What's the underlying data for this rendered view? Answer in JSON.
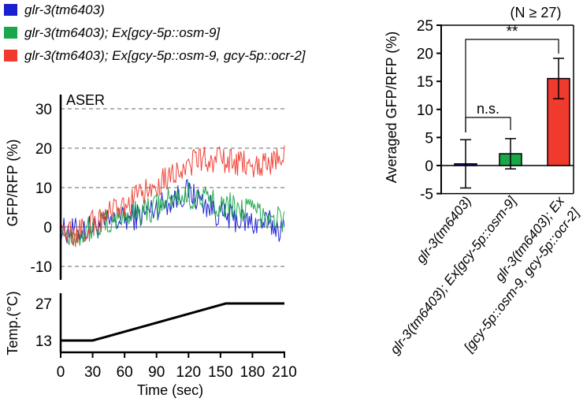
{
  "legend": [
    {
      "label": "glr-3(tm6403)",
      "color": "#1a1fd0"
    },
    {
      "label": "glr-3(tm6403); Ex[gcy-5p::osm-9]",
      "color": "#1aa64a"
    },
    {
      "label": "glr-3(tm6403); Ex[gcy-5p::osm-9, gcy-5p::ocr-2]",
      "color": "#f03a2e"
    }
  ],
  "chart_data": [
    {
      "type": "line",
      "title": "ASER",
      "ylabel": "GFP/RFP (%)",
      "xlabel": "",
      "ylim": [
        -12,
        35
      ],
      "yticks": [
        "30",
        "20",
        "10",
        "0",
        "-10"
      ],
      "grid": "dashed horizontal at y = 30, 20, 10, -10",
      "series": [
        {
          "name": "glr-3(tm6403)",
          "color": "#1a1fd0",
          "x": [
            0,
            15,
            30,
            45,
            60,
            75,
            90,
            105,
            120,
            135,
            150,
            165,
            180,
            195,
            210
          ],
          "values": [
            -1,
            -1,
            0,
            1,
            2,
            3,
            5,
            7,
            9,
            6,
            3,
            2,
            1,
            1,
            -1
          ]
        },
        {
          "name": "glr-3(tm6403); Ex[gcy-5p::osm-9]",
          "color": "#1aa64a",
          "x": [
            0,
            15,
            30,
            45,
            60,
            75,
            90,
            105,
            120,
            135,
            150,
            165,
            180,
            195,
            210
          ],
          "values": [
            -1,
            -2,
            0,
            1,
            3,
            4,
            5,
            7,
            8,
            7,
            6,
            5,
            4,
            3,
            2
          ]
        },
        {
          "name": "glr-3(tm6403); Ex[gcy-5p::osm-9, gcy-5p::ocr-2]",
          "color": "#f03a2e",
          "x": [
            0,
            15,
            30,
            45,
            60,
            75,
            90,
            105,
            120,
            135,
            150,
            165,
            180,
            195,
            210
          ],
          "values": [
            -1,
            -2,
            1,
            3,
            5,
            8,
            11,
            14,
            16,
            17,
            17,
            16,
            16,
            16,
            18
          ]
        }
      ]
    },
    {
      "type": "line",
      "title": "",
      "ylabel": "Temp.(°C)",
      "xlabel": "Time (sec)",
      "xlim": [
        0,
        210
      ],
      "xticks": [
        "0",
        "30",
        "60",
        "90",
        "120",
        "150",
        "180",
        "210"
      ],
      "yticks": [
        "27",
        "13"
      ],
      "series": [
        {
          "x": [
            0,
            30,
            155,
            210
          ],
          "values": [
            13,
            13,
            27,
            27
          ],
          "color": "#000000"
        }
      ]
    },
    {
      "type": "bar",
      "note": "(N ≥ 27)",
      "ylabel": "Averaged GFP/RFP (%)",
      "ylim": [
        -5,
        25
      ],
      "yticks": [
        "25",
        "20",
        "15",
        "10",
        "5",
        "0",
        "-5"
      ],
      "categories": [
        "glr-3(tm6403)",
        "glr-3(tm6403); Ex[gcy-5p::osm-9]",
        "glr-3(tm6403); Ex [gcy-5p::osm-9, gcy-5p::ocr-2]"
      ],
      "category_lines": [
        [
          "glr-3(tm6403)"
        ],
        [
          "glr-3(tm6403); Ex[gcy-5p::osm-9]"
        ],
        [
          "glr-3(tm6403); Ex",
          "[gcy-5p::osm-9, gcy-5p::ocr-2]"
        ]
      ],
      "values": [
        0.3,
        2.1,
        15.5
      ],
      "errors": [
        4.3,
        2.7,
        3.6
      ],
      "colors": [
        "#1a1fd0",
        "#1aa64a",
        "#f03a2e"
      ],
      "significance": [
        {
          "pair": [
            0,
            1
          ],
          "label": "n.s."
        },
        {
          "pair": [
            0,
            2
          ],
          "label": "**"
        }
      ]
    }
  ]
}
